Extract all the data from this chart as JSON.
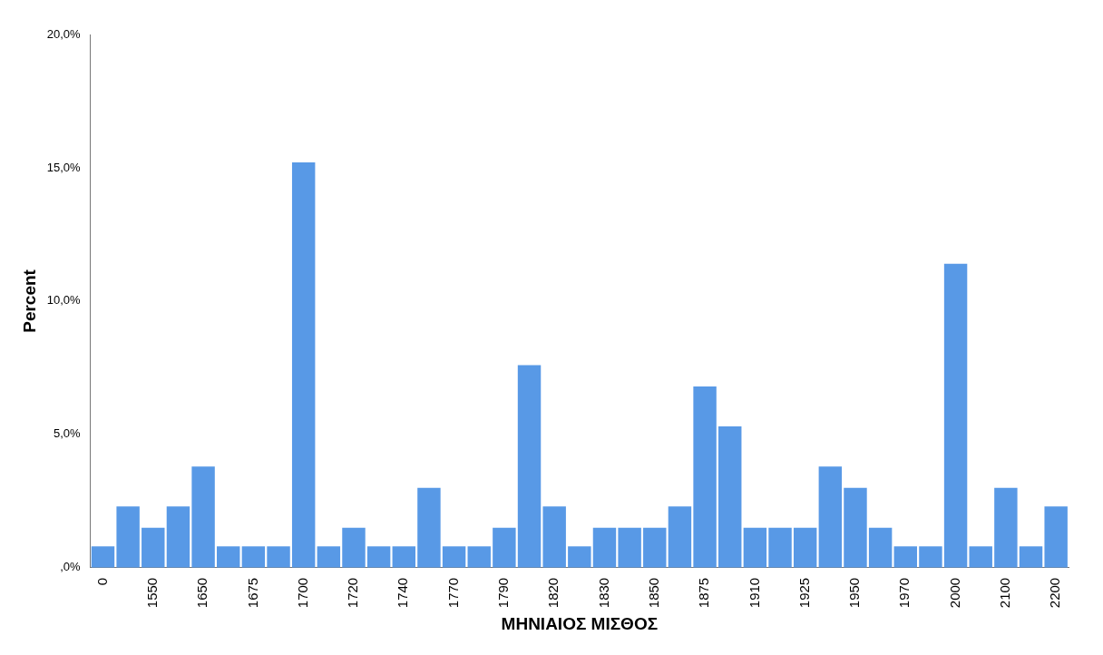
{
  "chart_data": {
    "type": "bar",
    "xlabel": "ΜΗΝΙΑΙΟΣ ΜΙΣΘΟΣ",
    "ylabel": "Percent",
    "categories": [
      "0",
      null,
      "1550",
      null,
      "1650",
      null,
      "1675",
      null,
      "1700",
      null,
      "1720",
      null,
      "1740",
      null,
      "1770",
      null,
      "1790",
      null,
      "1820",
      null,
      "1830",
      null,
      "1850",
      null,
      "1875",
      null,
      "1910",
      null,
      "1925",
      null,
      "1950",
      null,
      "1970",
      null,
      "2000",
      null,
      "2100",
      null,
      "2200"
    ],
    "values": [
      0.8,
      2.3,
      1.5,
      2.3,
      3.8,
      0.8,
      0.8,
      0.8,
      15.2,
      0.8,
      1.5,
      0.8,
      0.8,
      3.0,
      0.8,
      0.8,
      1.5,
      7.6,
      2.3,
      0.8,
      1.5,
      1.5,
      1.5,
      2.3,
      6.8,
      5.3,
      1.5,
      1.5,
      1.5,
      3.8,
      3.0,
      1.5,
      0.8,
      0.8,
      11.4,
      0.8,
      3.0,
      0.8,
      2.3
    ],
    "color": "#5899e6",
    "ylim": [
      0,
      20
    ],
    "yticks": [
      {
        "value": 0,
        "label": ",0%"
      },
      {
        "value": 5,
        "label": "5,0%"
      },
      {
        "value": 10,
        "label": "10,0%"
      },
      {
        "value": 15,
        "label": "15,0%"
      },
      {
        "value": 20,
        "label": "20,0%"
      }
    ],
    "grid": false,
    "legend": false
  }
}
